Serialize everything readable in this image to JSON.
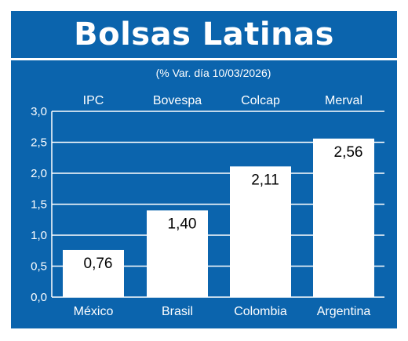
{
  "colors": {
    "background": "#0b64ad",
    "bar": "#ffffff",
    "text": "#ffffff",
    "value_label": "#000000"
  },
  "chart_data": {
    "type": "bar",
    "title": "Bolsas Latinas",
    "subtitle": "(% Var. día 10/03/2026)",
    "categories": [
      "México",
      "Brasil",
      "Colombia",
      "Argentina"
    ],
    "index_names": [
      "IPC",
      "Bovespa",
      "Colcap",
      "Merval"
    ],
    "values": [
      0.76,
      1.4,
      2.11,
      2.56
    ],
    "value_labels": [
      "0,76",
      "1,40",
      "2,11",
      "2,56"
    ],
    "yticks": [
      "0,0",
      "0,5",
      "1,0",
      "1,5",
      "2,0",
      "2,5",
      "3,0"
    ],
    "ylim": [
      0,
      3
    ],
    "grid": true,
    "xlabel": "",
    "ylabel": ""
  }
}
